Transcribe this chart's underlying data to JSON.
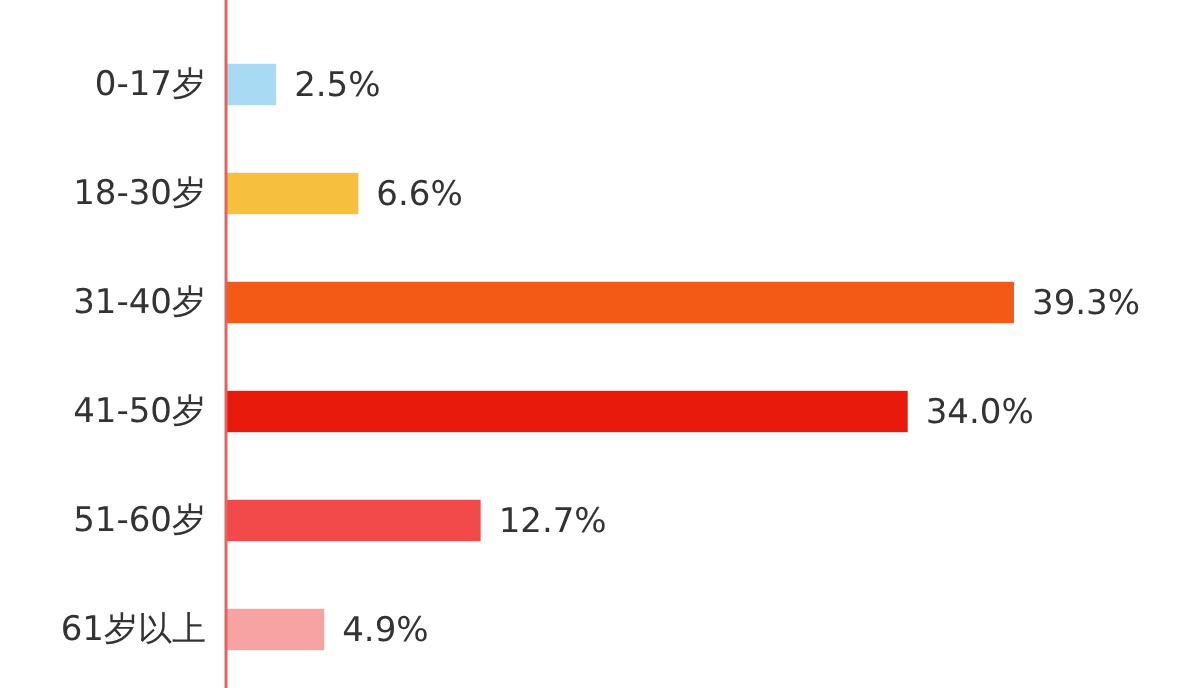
{
  "chart_data": {
    "type": "bar",
    "orientation": "horizontal",
    "categories": [
      "0-17岁",
      "18-30岁",
      "31-40岁",
      "41-50岁",
      "51-60岁",
      "61岁以上"
    ],
    "values": [
      2.5,
      6.6,
      39.3,
      34.0,
      12.7,
      4.9
    ],
    "value_labels": [
      "2.5%",
      "6.6%",
      "39.3%",
      "34.0%",
      "12.7%",
      "4.9%"
    ],
    "colors": [
      "#a9daf3",
      "#f7bf3e",
      "#f25a15",
      "#e81a0c",
      "#f2494b",
      "#f7a3a3"
    ]
  }
}
